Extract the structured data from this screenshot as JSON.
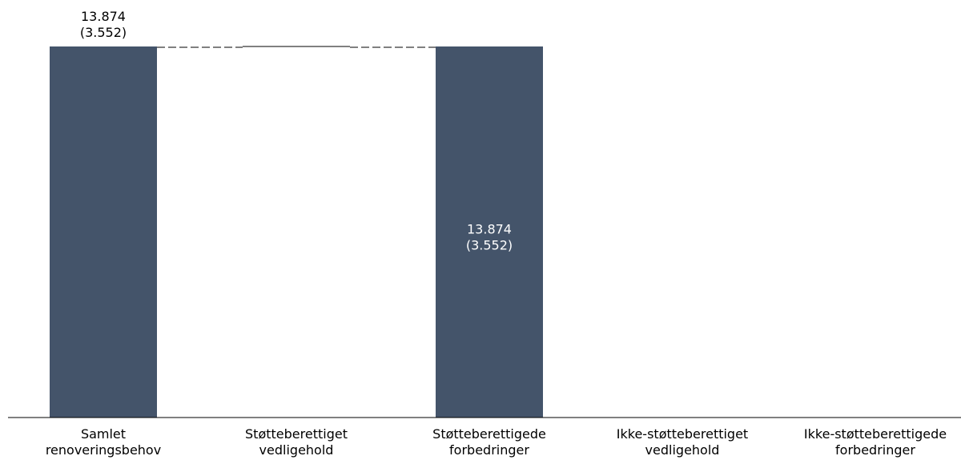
{
  "chart_data": {
    "type": "bar",
    "subtype": "waterfall",
    "categories": [
      [
        "Samlet",
        "renoveringsbehov"
      ],
      [
        "Støtteberettiget",
        "vedligehold"
      ],
      [
        "Støtteberettigede",
        "forbedringer"
      ],
      [
        "Ikke-støtteberettiget",
        "vedligehold"
      ],
      [
        "Ikke-støtteberettigede",
        "forbedringer"
      ]
    ],
    "bars": [
      {
        "kind": "total",
        "base": 0,
        "value": 13874,
        "label": [
          "13.874",
          "(3.552)"
        ],
        "label_position": "above"
      },
      {
        "kind": "step",
        "base": 13874,
        "value": 0,
        "label": null
      },
      {
        "kind": "total",
        "base": 0,
        "value": 13874,
        "label": [
          "13.874",
          "(3.552)"
        ],
        "label_position": "inside"
      },
      {
        "kind": "step",
        "base": 0,
        "value": 0,
        "label": null
      },
      {
        "kind": "step",
        "base": 0,
        "value": 0,
        "label": null
      }
    ],
    "ylim": [
      0,
      13874
    ],
    "colors": {
      "bar": "#44546a",
      "label_outside": "#000000",
      "label_inside": "#ffffff",
      "axis": "#000000",
      "connector": "#000000"
    },
    "grid": false,
    "legend": "none"
  }
}
